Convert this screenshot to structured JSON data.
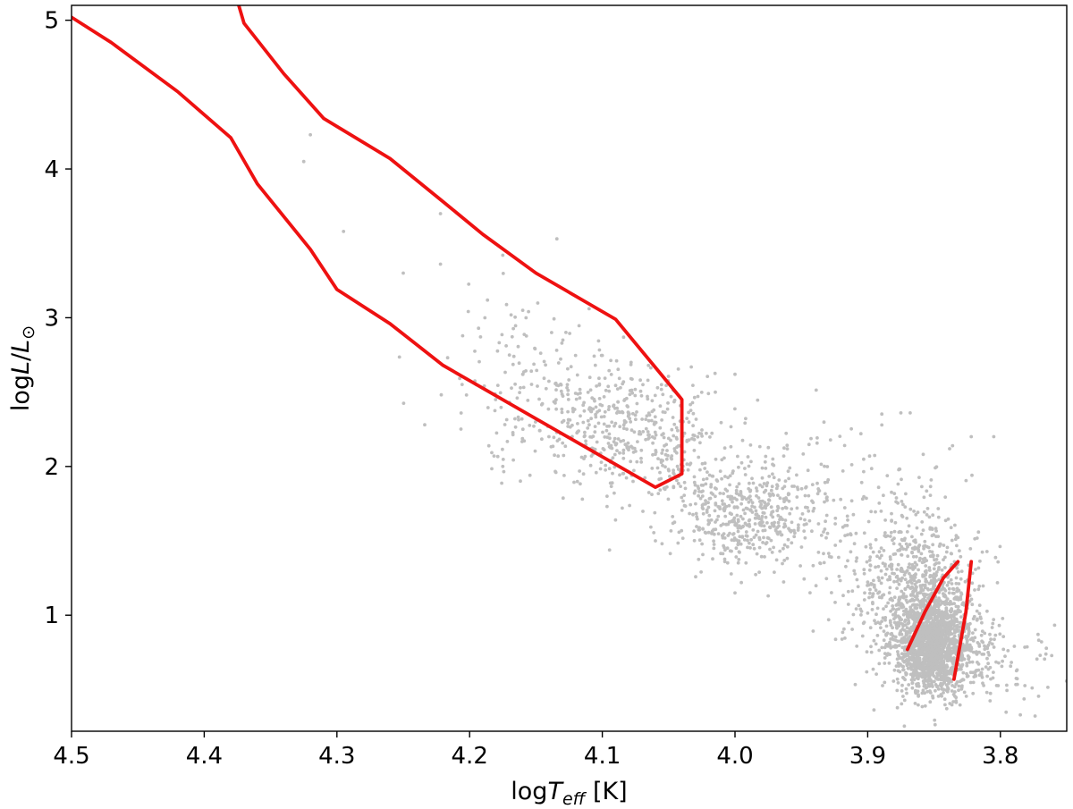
{
  "chart_data": {
    "type": "scatter",
    "xlabel": "logT_eff [K]",
    "ylabel": "logL/L_⊙",
    "xlim": [
      4.5,
      3.75
    ],
    "ylim": [
      0.22,
      5.1
    ],
    "x_inverted": true,
    "grid": false,
    "legend": "none",
    "x_ticks": [
      4.5,
      4.4,
      4.3,
      4.2,
      4.1,
      4.0,
      3.9,
      3.8
    ],
    "x_tick_labels": [
      "4.5",
      "4.4",
      "4.3",
      "4.2",
      "4.1",
      "4.0",
      "3.9",
      "3.8"
    ],
    "y_ticks": [
      1,
      2,
      3,
      4,
      5
    ],
    "y_tick_labels": [
      "1",
      "2",
      "3",
      "4",
      "5"
    ],
    "colors": {
      "points": "#bfbfbf",
      "curves": "#ee1111",
      "axes": "#000000"
    },
    "series": [
      {
        "kind": "line",
        "points": [
          [
            4.5,
            5.02
          ],
          [
            4.47,
            4.85
          ],
          [
            4.42,
            4.52
          ],
          [
            4.38,
            4.21
          ],
          [
            4.36,
            3.9
          ],
          [
            4.32,
            3.46
          ],
          [
            4.3,
            3.19
          ],
          [
            4.26,
            2.96
          ],
          [
            4.22,
            2.68
          ],
          [
            4.06,
            1.86
          ],
          [
            4.04,
            1.95
          ],
          [
            4.04,
            2.45
          ],
          [
            4.09,
            2.99
          ],
          [
            4.15,
            3.3
          ],
          [
            4.19,
            3.56
          ],
          [
            4.22,
            3.78
          ],
          [
            4.26,
            4.07
          ],
          [
            4.31,
            4.34
          ],
          [
            4.34,
            4.64
          ],
          [
            4.37,
            4.98
          ],
          [
            4.374,
            5.1
          ]
        ]
      },
      {
        "kind": "line",
        "points": [
          [
            3.87,
            0.77
          ],
          [
            3.857,
            1.02
          ],
          [
            3.843,
            1.25
          ],
          [
            3.832,
            1.36
          ]
        ]
      },
      {
        "kind": "line",
        "points": [
          [
            3.835,
            0.57
          ],
          [
            3.826,
            1.02
          ],
          [
            3.822,
            1.36
          ]
        ]
      },
      {
        "kind": "scatter",
        "clusters": [
          {
            "n": 1300,
            "cx": 3.852,
            "cy": 0.82,
            "sx": 0.012,
            "sy": 0.16
          },
          {
            "n": 550,
            "cx": 3.86,
            "cy": 1.05,
            "sx": 0.022,
            "sy": 0.26
          },
          {
            "n": 380,
            "cx": 3.835,
            "cy": 0.72,
            "sx": 0.028,
            "sy": 0.16
          },
          {
            "n": 300,
            "cx": 3.875,
            "cy": 1.35,
            "sx": 0.028,
            "sy": 0.3
          },
          {
            "n": 480,
            "cx": 3.99,
            "cy": 1.68,
            "sx": 0.028,
            "sy": 0.18
          },
          {
            "n": 350,
            "cx": 4.07,
            "cy": 2.22,
            "sx": 0.028,
            "sy": 0.2
          },
          {
            "n": 150,
            "cx": 4.13,
            "cy": 2.38,
            "sx": 0.035,
            "sy": 0.2
          },
          {
            "n": 100,
            "cx": 3.95,
            "cy": 1.95,
            "sx": 0.04,
            "sy": 0.22
          },
          {
            "n": 90,
            "cx": 4.16,
            "cy": 2.7,
            "sx": 0.035,
            "sy": 0.3
          }
        ],
        "outliers": [
          [
            4.32,
            4.23
          ],
          [
            4.325,
            4.05
          ],
          [
            4.295,
            3.58
          ],
          [
            4.222,
            3.7
          ],
          [
            4.222,
            3.36
          ],
          [
            4.25,
            3.3
          ],
          [
            4.175,
            3.42
          ],
          [
            4.195,
            2.55
          ],
          [
            4.16,
            3.05
          ],
          [
            4.11,
            3.06
          ],
          [
            4.16,
            2.62
          ],
          [
            4.02,
            2.49
          ],
          [
            4.0,
            2.62
          ],
          [
            3.875,
            2.36
          ],
          [
            3.868,
            2.36
          ],
          [
            3.822,
            2.2
          ],
          [
            3.805,
            2.2
          ],
          [
            4.175,
            2.0
          ],
          [
            4.135,
            1.96
          ],
          [
            4.115,
            1.78
          ],
          [
            4.085,
            1.72
          ],
          [
            4.09,
            1.64
          ],
          [
            4.06,
            1.5
          ],
          [
            4.0,
            1.15
          ],
          [
            3.975,
            1.13
          ],
          [
            3.785,
            0.33
          ],
          [
            3.77,
            0.73
          ],
          [
            4.055,
            1.48
          ]
        ]
      }
    ]
  }
}
